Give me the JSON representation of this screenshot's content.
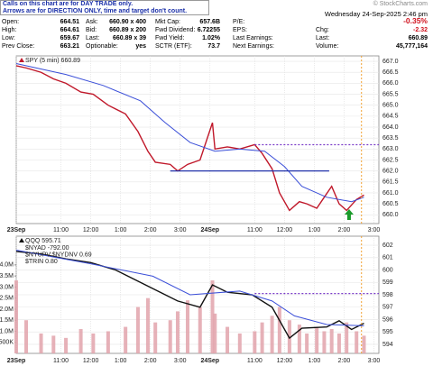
{
  "info": {
    "note": [
      "Calls on this chart are for DAY TRADE only.",
      "Arrows are for DIRECTION ONLY, time and target don't count."
    ],
    "date": "Wednesday 24-Sep-2025 2:46 pm",
    "change_pct": "-0.35%",
    "columns": [
      [
        [
          "Open:",
          "664.51"
        ],
        [
          "High:",
          "664.61"
        ],
        [
          "Low:",
          "659.67"
        ],
        [
          "Prev Close:",
          "663.21"
        ]
      ],
      [
        [
          "Ask:",
          "660.90 x 400"
        ],
        [
          "Bid:",
          "660.89 x 200"
        ],
        [
          "Last:",
          "660.89 x 39"
        ],
        [
          "Optionable:",
          "yes"
        ]
      ],
      [
        [
          "Mkt Cap:",
          "657.6B"
        ],
        [
          "Fwd Dividend:",
          "6.72255"
        ],
        [
          "Fwd Yield:",
          "1.02%"
        ],
        [
          "SCTR (ETF):",
          "73.7"
        ]
      ],
      [
        [
          "P/E:"
        ],
        [
          "EPS:"
        ],
        [
          "Last Earnings:"
        ],
        [
          "Next Earnings:"
        ]
      ]
    ],
    "right": [
      [
        "Chg:",
        "-2.32"
      ],
      [
        "Last:",
        "660.89"
      ],
      [
        "Volume:",
        "45,777,164"
      ]
    ],
    "watermark": "© StockCharts.com"
  },
  "chart_data": [
    {
      "type": "line",
      "xlim": [
        0,
        146
      ],
      "xticks": [
        {
          "value": 0,
          "label": "23Sep"
        },
        {
          "value": 18,
          "label": "11:00"
        },
        {
          "value": 30,
          "label": "12:00"
        },
        {
          "value": 42,
          "label": "1:00"
        },
        {
          "value": 54,
          "label": "2:00"
        },
        {
          "value": 66,
          "label": "3:00"
        },
        {
          "value": 78,
          "label": "24Sep"
        },
        {
          "value": 96,
          "label": "11:00"
        },
        {
          "value": 108,
          "label": "12:00"
        },
        {
          "value": 120,
          "label": "1:00"
        },
        {
          "value": 132,
          "label": "2:00"
        },
        {
          "value": 144,
          "label": "3:00"
        }
      ],
      "ylim": [
        659.6,
        667.25
      ],
      "yticks": [
        {
          "value": 660,
          "label": "660.0"
        },
        {
          "value": 660.5,
          "label": "660.5"
        },
        {
          "value": 661,
          "label": "661.0"
        },
        {
          "value": 661.5,
          "label": "661.5"
        },
        {
          "value": 662,
          "label": "662.0"
        },
        {
          "value": 662.5,
          "label": "662.5"
        },
        {
          "value": 663,
          "label": "663.0"
        },
        {
          "value": 663.5,
          "label": "663.5"
        },
        {
          "value": 664,
          "label": "664.0"
        },
        {
          "value": 664.5,
          "label": "664.5"
        },
        {
          "value": 665,
          "label": "665.0"
        },
        {
          "value": 665.5,
          "label": "665.5"
        },
        {
          "value": 666,
          "label": "666.0"
        },
        {
          "value": 666.5,
          "label": "666.5"
        },
        {
          "value": 667,
          "label": "667.0"
        }
      ],
      "grid": true,
      "series": [
        {
          "name": "SPY (5 min) 660.89",
          "color": "#c0182a",
          "x": [
            0,
            4,
            10,
            15,
            20,
            26,
            31,
            37,
            44,
            49,
            53,
            56,
            62,
            65,
            69,
            74,
            79,
            80,
            85,
            90,
            96,
            99,
            103,
            106,
            110,
            114,
            117,
            121,
            124,
            127,
            130,
            133,
            137,
            140
          ],
          "values": [
            666.8,
            666.7,
            666.5,
            666.2,
            666.0,
            665.6,
            665.5,
            665.0,
            664.6,
            663.8,
            662.9,
            662.4,
            662.3,
            662.0,
            662.3,
            662.5,
            664.2,
            663.0,
            663.1,
            663.0,
            663.2,
            662.8,
            662.1,
            661.0,
            660.2,
            660.6,
            660.5,
            660.3,
            660.8,
            661.3,
            660.5,
            660.2,
            660.7,
            660.9
          ]
        },
        {
          "color": "#3b4fd8",
          "x": [
            0,
            20,
            35,
            50,
            60,
            70,
            80,
            90,
            100,
            108,
            115,
            125,
            135,
            140
          ],
          "values": [
            666.9,
            666.4,
            665.9,
            665.2,
            664.2,
            663.3,
            662.9,
            663.0,
            662.9,
            662.2,
            661.3,
            660.8,
            660.6,
            660.8
          ]
        }
      ],
      "levels": [
        {
          "value": 662.0,
          "from": 62,
          "to": 126,
          "color": "#2233aa",
          "style": "solid"
        },
        {
          "value": 663.2,
          "from": 96,
          "to": 146,
          "color": "#7a3cc8",
          "style": "dashed"
        }
      ],
      "vline": {
        "x": 139,
        "color": "#f0a030"
      },
      "arrow": {
        "x": 134,
        "color": "#1a9a2a"
      }
    },
    {
      "type": "bar",
      "xlim": [
        0,
        146
      ],
      "xticks": [
        {
          "value": 0,
          "label": "23Sep"
        },
        {
          "value": 18,
          "label": "11:00"
        },
        {
          "value": 30,
          "label": "12:00"
        },
        {
          "value": 42,
          "label": "1:00"
        },
        {
          "value": 54,
          "label": "2:00"
        },
        {
          "value": 66,
          "label": "3:00"
        },
        {
          "value": 78,
          "label": "24Sep"
        },
        {
          "value": 96,
          "label": "11:00"
        },
        {
          "value": 108,
          "label": "12:00"
        },
        {
          "value": 120,
          "label": "1:00"
        },
        {
          "value": 132,
          "label": "2:00"
        },
        {
          "value": 144,
          "label": "3:00"
        }
      ],
      "ylim": [
        0,
        5300000
      ],
      "yticks": [
        {
          "value": 500000,
          "label": "500K"
        },
        {
          "value": 1000000,
          "label": "1.0M"
        },
        {
          "value": 1500000,
          "label": "1.5M"
        },
        {
          "value": 2000000,
          "label": "2.0M"
        },
        {
          "value": 2500000,
          "label": "2.5M"
        },
        {
          "value": 3000000,
          "label": "3.0M"
        },
        {
          "value": 3500000,
          "label": "3.5M"
        },
        {
          "value": 4000000,
          "label": "4.0M"
        }
      ],
      "y2lim": [
        593.27,
        602.73
      ],
      "y2ticks": [
        594,
        595,
        596,
        597,
        598,
        599,
        600,
        601,
        602
      ],
      "grid": true,
      "indicators": [
        "$NYAD -792.00",
        "$NYUPV:$NYDNV 0.69",
        "$TRIN 0.80"
      ],
      "series": [
        {
          "color": "#e2a3ab",
          "x": [
            0,
            4,
            10,
            15,
            20,
            26,
            31,
            37,
            44,
            49,
            53,
            56,
            62,
            65,
            69,
            74,
            79,
            80,
            85,
            90,
            96,
            99,
            103,
            106,
            110,
            114,
            117,
            121,
            124,
            127,
            130,
            133,
            137,
            140
          ],
          "values": [
            3300000,
            1500000,
            900000,
            800000,
            700000,
            1100000,
            900000,
            1000000,
            1200000,
            2100000,
            2500000,
            1400000,
            1500000,
            1900000,
            2400000,
            2100000,
            3300000,
            1800000,
            1200000,
            900000,
            1000000,
            1400000,
            1700000,
            2100000,
            1500000,
            1300000,
            900000,
            1200000,
            1000000,
            1100000,
            900000,
            1400000,
            1000000,
            800000
          ]
        },
        {
          "name": "QQQ 595.71",
          "color": "#111111",
          "axis": "y2",
          "x": [
            0,
            10,
            20,
            30,
            40,
            48,
            55,
            65,
            74,
            79,
            85,
            95,
            103,
            110,
            115,
            125,
            130,
            135,
            140
          ],
          "values": [
            601.5,
            601.3,
            600.9,
            600.6,
            600.0,
            599.2,
            598.5,
            597.5,
            597.0,
            598.8,
            598.2,
            598.0,
            597.0,
            594.5,
            595.3,
            595.4,
            595.9,
            595.2,
            595.7
          ]
        },
        {
          "color": "#3b4fd8",
          "axis": "y2",
          "x": [
            0,
            30,
            55,
            70,
            90,
            103,
            112,
            125,
            140
          ],
          "values": [
            601.6,
            600.5,
            599.5,
            598.0,
            598.3,
            597.5,
            596.3,
            595.6,
            595.5
          ]
        }
      ],
      "levels": [
        {
          "value": 598.1,
          "from": 96,
          "to": 146,
          "color": "#7a3cc8",
          "style": "dashed",
          "axis": "y2"
        }
      ],
      "vline": {
        "x": 139,
        "color": "#f0a030"
      }
    }
  ]
}
